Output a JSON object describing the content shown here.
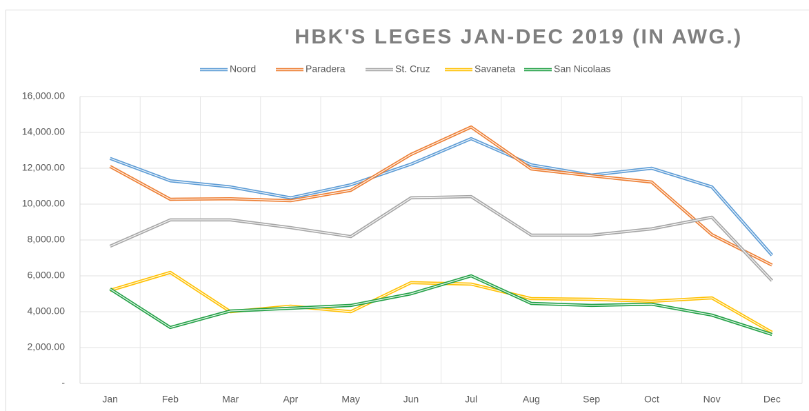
{
  "chart_data": {
    "type": "line",
    "title": "HBK'S LEGES JAN-DEC 2019 (IN AWG.)",
    "categories": [
      "Jan",
      "Feb",
      "Mar",
      "Apr",
      "May",
      "Jun",
      "Jul",
      "Aug",
      "Sep",
      "Oct",
      "Nov",
      "Dec"
    ],
    "series": [
      {
        "name": "Noord",
        "color": "#5b9bd5",
        "values": [
          12550,
          11300,
          10960,
          10350,
          11080,
          12230,
          13650,
          12190,
          11620,
          12000,
          10960,
          7150
        ]
      },
      {
        "name": "Paradera",
        "color": "#ed7d31",
        "values": [
          12100,
          10270,
          10300,
          10190,
          10770,
          12770,
          14300,
          11960,
          11580,
          11230,
          8300,
          6600
        ]
      },
      {
        "name": "St. Cruz",
        "color": "#a5a5a5",
        "values": [
          7650,
          9120,
          9120,
          8690,
          8190,
          10350,
          10420,
          8270,
          8270,
          8620,
          9270,
          5730
        ]
      },
      {
        "name": "Savaneta",
        "color": "#ffc000",
        "values": [
          5190,
          6190,
          4000,
          4310,
          4000,
          5620,
          5540,
          4730,
          4690,
          4580,
          4770,
          2850
        ]
      },
      {
        "name": "San Nicolaas",
        "color": "#21a045",
        "values": [
          5270,
          3120,
          4040,
          4190,
          4350,
          5000,
          6000,
          4460,
          4350,
          4420,
          3810,
          2730
        ]
      }
    ],
    "ylim": [
      0,
      16000
    ],
    "yticks": [
      {
        "value": 0,
        "label": "-"
      },
      {
        "value": 2000,
        "label": "2,000.00"
      },
      {
        "value": 4000,
        "label": "4,000.00"
      },
      {
        "value": 6000,
        "label": "6,000.00"
      },
      {
        "value": 8000,
        "label": "8,000.00"
      },
      {
        "value": 10000,
        "label": "10,000.00"
      },
      {
        "value": 12000,
        "label": "12,000.00"
      },
      {
        "value": 14000,
        "label": "14,000.00"
      },
      {
        "value": 16000,
        "label": "16,000.00"
      }
    ],
    "grid": true,
    "legend": "top"
  }
}
